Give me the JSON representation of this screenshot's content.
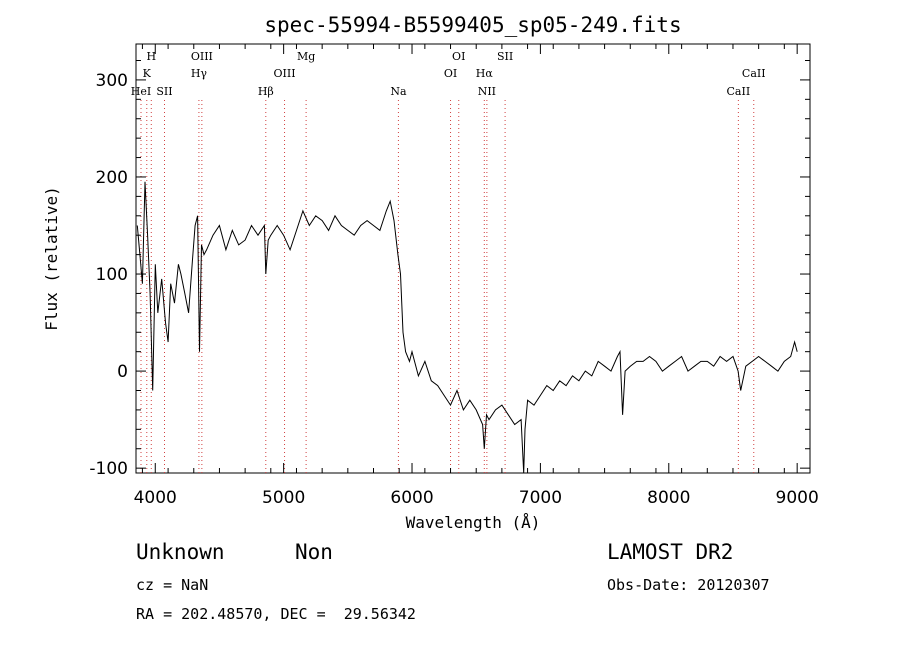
{
  "chart_data": {
    "type": "line",
    "title": "spec-55994-B5599405_sp05-249.fits",
    "xlabel": "Wavelength (Å)",
    "ylabel": "Flux (relative)",
    "xlim": [
      3850,
      9100
    ],
    "ylim": [
      -105,
      337
    ],
    "xticks": [
      4000,
      5000,
      6000,
      7000,
      8000,
      9000
    ],
    "yticks": [
      -100,
      0,
      100,
      200,
      300
    ],
    "grid": false,
    "line_color": "#000000",
    "marker_line_color": "#d04040",
    "series": [
      {
        "x": [
          3860,
          3880,
          3900,
          3920,
          3940,
          3960,
          3980,
          4000,
          4020,
          4050,
          4080,
          4100,
          4120,
          4150,
          4180,
          4200,
          4230,
          4260,
          4290,
          4310,
          4330,
          4345,
          4360,
          4380,
          4400,
          4450,
          4500,
          4550,
          4600,
          4650,
          4700,
          4750,
          4800,
          4850,
          4861,
          4880,
          4900,
          4950,
          5000,
          5050,
          5100,
          5150,
          5200,
          5250,
          5300,
          5350,
          5400,
          5450,
          5500,
          5550,
          5600,
          5650,
          5700,
          5750,
          5800,
          5830,
          5860,
          5890,
          5910,
          5930,
          5950,
          5980,
          6000,
          6050,
          6100,
          6150,
          6200,
          6250,
          6300,
          6350,
          6400,
          6450,
          6500,
          6550,
          6563,
          6580,
          6600,
          6650,
          6700,
          6750,
          6800,
          6850,
          6870,
          6880,
          6900,
          6950,
          7000,
          7050,
          7100,
          7150,
          7200,
          7250,
          7300,
          7350,
          7400,
          7450,
          7500,
          7550,
          7600,
          7620,
          7640,
          7660,
          7700,
          7750,
          7800,
          7850,
          7900,
          7950,
          8000,
          8050,
          8100,
          8150,
          8200,
          8250,
          8300,
          8350,
          8400,
          8450,
          8500,
          8540,
          8560,
          8600,
          8650,
          8700,
          8750,
          8800,
          8850,
          8900,
          8950,
          8980,
          9000
        ],
        "y": [
          150,
          120,
          90,
          195,
          140,
          80,
          -20,
          110,
          60,
          95,
          50,
          30,
          90,
          70,
          110,
          100,
          80,
          60,
          115,
          150,
          160,
          20,
          130,
          120,
          125,
          140,
          150,
          125,
          145,
          130,
          135,
          150,
          140,
          150,
          100,
          135,
          140,
          150,
          140,
          125,
          145,
          165,
          150,
          160,
          155,
          145,
          160,
          150,
          145,
          140,
          150,
          155,
          150,
          145,
          165,
          175,
          155,
          120,
          100,
          40,
          20,
          10,
          20,
          -5,
          10,
          -10,
          -15,
          -25,
          -35,
          -20,
          -40,
          -30,
          -40,
          -55,
          -80,
          -45,
          -50,
          -40,
          -35,
          -45,
          -55,
          -50,
          -110,
          -60,
          -30,
          -35,
          -25,
          -15,
          -20,
          -10,
          -15,
          -5,
          -10,
          0,
          -5,
          10,
          5,
          0,
          15,
          20,
          -45,
          0,
          5,
          10,
          10,
          15,
          10,
          0,
          5,
          10,
          15,
          0,
          5,
          10,
          10,
          5,
          15,
          10,
          15,
          0,
          -20,
          5,
          10,
          15,
          10,
          5,
          0,
          10,
          15,
          30,
          20
        ]
      }
    ],
    "lines": [
      {
        "x": 3889,
        "labels": [
          "HeI"
        ]
      },
      {
        "x": 3934,
        "labels": [
          "K"
        ]
      },
      {
        "x": 3969,
        "labels": [
          "H"
        ]
      },
      {
        "x": 4072,
        "labels": [
          "SII"
        ]
      },
      {
        "x": 4340,
        "labels": [
          "Hγ"
        ]
      },
      {
        "x": 4363,
        "labels": [
          "OIII"
        ]
      },
      {
        "x": 4861,
        "labels": [
          "Hβ"
        ]
      },
      {
        "x": 5007,
        "labels": [
          "OIII"
        ]
      },
      {
        "x": 5175,
        "labels": [
          "Mg"
        ]
      },
      {
        "x": 5894,
        "labels": [
          "Na"
        ]
      },
      {
        "x": 6300,
        "labels": [
          "OI"
        ]
      },
      {
        "x": 6364,
        "labels": [
          "OI"
        ]
      },
      {
        "x": 6563,
        "labels": [
          "Hα"
        ]
      },
      {
        "x": 6583,
        "labels": [
          "NII"
        ]
      },
      {
        "x": 6725,
        "labels": [
          "SII"
        ]
      },
      {
        "x": 8542,
        "labels": [
          "CaII"
        ]
      },
      {
        "x": 8662,
        "labels": [
          "CaII"
        ]
      }
    ]
  },
  "info": {
    "class": "Unknown",
    "subclass": "Non",
    "cz": "cz = NaN",
    "coords": "RA = 202.48570, DEC =  29.56342",
    "survey": "LAMOST DR2",
    "obs_date": "Obs-Date: 20120307"
  }
}
